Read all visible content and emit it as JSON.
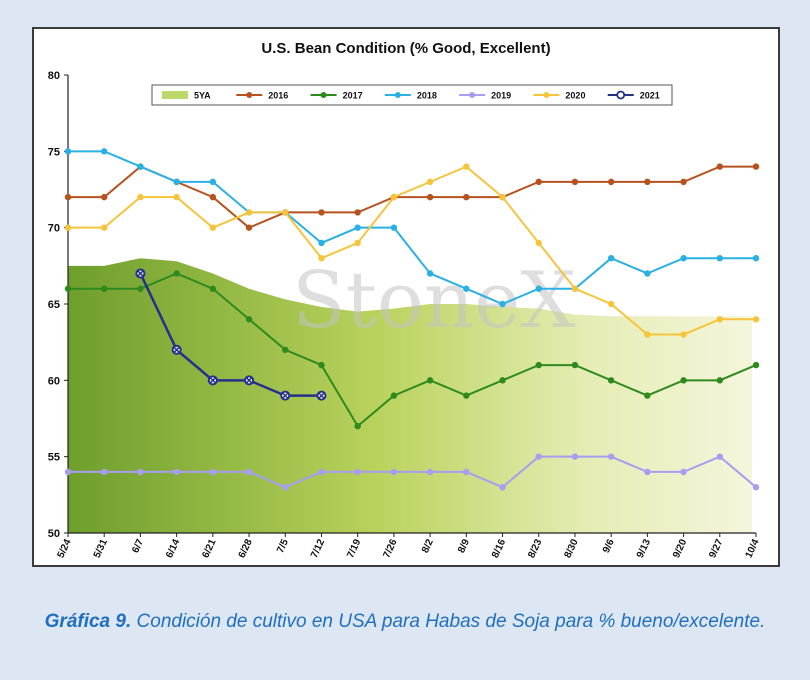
{
  "chart_data": {
    "type": "line",
    "title": "U.S. Bean Condition (% Good, Excellent)",
    "xlabel": "",
    "ylabel": "",
    "ylim": [
      50,
      80
    ],
    "yticks": [
      50,
      55,
      60,
      65,
      70,
      75,
      80
    ],
    "grid": false,
    "legend_position": "top",
    "categories": [
      "5/24",
      "5/31",
      "6/7",
      "6/14",
      "6/21",
      "6/28",
      "7/5",
      "7/12",
      "7/19",
      "7/26",
      "8/2",
      "8/9",
      "8/16",
      "8/23",
      "8/30",
      "9/6",
      "9/13",
      "9/20",
      "9/27",
      "10/4"
    ],
    "watermark": "StoneX",
    "series": [
      {
        "name": "5YA",
        "style": "area",
        "color": "#9bbf3c",
        "values": [
          67.5,
          67.5,
          68,
          67.8,
          67,
          66,
          65.3,
          64.8,
          64.5,
          64.7,
          65,
          65,
          64.8,
          64.7,
          64.3,
          64.2,
          null,
          null,
          null,
          null
        ]
      },
      {
        "name": "2016",
        "style": "line",
        "color": "#b5521f",
        "values": [
          72,
          72,
          74,
          73,
          72,
          70,
          71,
          71,
          71,
          72,
          72,
          72,
          72,
          73,
          73,
          73,
          73,
          73,
          74,
          74
        ]
      },
      {
        "name": "2017",
        "style": "line",
        "color": "#2f8a1e",
        "values": [
          66,
          66,
          66,
          67,
          66,
          64,
          62,
          61,
          57,
          59,
          60,
          59,
          60,
          61,
          61,
          60,
          59,
          60,
          60,
          61
        ]
      },
      {
        "name": "2018",
        "style": "line",
        "color": "#2ab0e3",
        "values": [
          75,
          75,
          74,
          73,
          73,
          71,
          71,
          69,
          70,
          70,
          67,
          66,
          65,
          66,
          66,
          68,
          67,
          68,
          68,
          68
        ]
      },
      {
        "name": "2019",
        "style": "line",
        "color": "#a89df0",
        "values": [
          54,
          54,
          54,
          54,
          54,
          54,
          53,
          54,
          54,
          54,
          54,
          54,
          53,
          55,
          55,
          55,
          54,
          54,
          55,
          53
        ]
      },
      {
        "name": "2020",
        "style": "line",
        "color": "#f5c43a",
        "values": [
          70,
          70,
          72,
          72,
          70,
          71,
          71,
          68,
          69,
          72,
          73,
          74,
          72,
          69,
          66,
          65,
          63,
          63,
          64,
          64
        ]
      },
      {
        "name": "2021",
        "style": "line",
        "color": "#26308a",
        "values": [
          null,
          null,
          67,
          62,
          60,
          60,
          59,
          59,
          null,
          null,
          null,
          null,
          null,
          null,
          null,
          null,
          null,
          null,
          null,
          null
        ]
      }
    ]
  },
  "caption": {
    "lead": "Gráfica 9.",
    "text": " Condición de cultivo en USA para Habas de Soja para % bueno/excelente."
  }
}
